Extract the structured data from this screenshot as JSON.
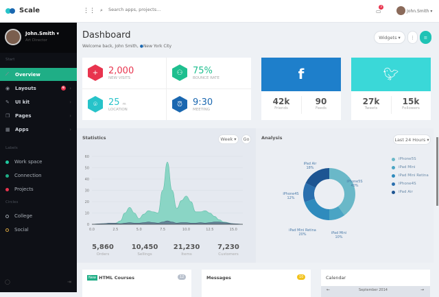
{
  "app": {
    "name": "Scale"
  },
  "topbar": {
    "search_placeholder": "Search apps, projects...",
    "notifications": "3",
    "user": "John.Smith"
  },
  "sidebar": {
    "user": {
      "name": "John.Smith",
      "role": "Art Director"
    },
    "section_start": "Start",
    "items": [
      {
        "label": "Overview",
        "icon": "chart-icon",
        "active": true
      },
      {
        "label": "Layouts",
        "icon": "layers-icon",
        "badge": "6"
      },
      {
        "label": "UI kit",
        "icon": "brush-icon"
      },
      {
        "label": "Pages",
        "icon": "pages-icon"
      },
      {
        "label": "Apps",
        "icon": "grid-icon"
      }
    ],
    "section_labels": "Labels",
    "labels": [
      {
        "label": "Work space",
        "color": "#1fc9a0"
      },
      {
        "label": "Connection",
        "color": "#1fae86"
      },
      {
        "label": "Projects",
        "color": "#e8344e"
      }
    ],
    "section_circles": "Circles",
    "circles": [
      {
        "label": "College",
        "color": "#9aa0a8"
      },
      {
        "label": "Social",
        "color": "#d9a640"
      }
    ]
  },
  "header": {
    "title": "Dashboard",
    "subtitle": "Welcome back, John Smith,",
    "location": "New York City",
    "widgets": "Widgets"
  },
  "stats": [
    {
      "value": "2,000",
      "label": "New visits",
      "color": "#e8344e",
      "icon": "plus-icon"
    },
    {
      "value": "75%",
      "label": "Bounce rate",
      "color": "#1fbf8f",
      "icon": "users-icon"
    },
    {
      "value": "25",
      "unit": "m",
      "label": "Location",
      "color": "#27c3c9",
      "icon": "location-icon"
    },
    {
      "value": "9:30",
      "label": "Meeting",
      "color": "#1a67b0",
      "icon": "alarm-icon"
    }
  ],
  "facebook": {
    "color": "#1e7fcb",
    "stats": [
      {
        "value": "42k",
        "label": "Friends"
      },
      {
        "value": "90",
        "label": "Feeds"
      }
    ]
  },
  "twitter": {
    "color": "#3ad8d8",
    "stats": [
      {
        "value": "27k",
        "label": "Tweets"
      },
      {
        "value": "15k",
        "label": "Followers"
      }
    ]
  },
  "statistics": {
    "title": "Statistics",
    "range": "Week",
    "go": "Go",
    "summary": [
      {
        "value": "5,860",
        "label": "Orders"
      },
      {
        "value": "10,450",
        "label": "Sellings"
      },
      {
        "value": "21,230",
        "label": "Items"
      },
      {
        "value": "7,230",
        "label": "Customers"
      }
    ]
  },
  "chart_data": [
    {
      "type": "area",
      "xlim": [
        0,
        16
      ],
      "ylim": [
        0,
        60
      ],
      "xticks": [
        "0.0",
        "2.5",
        "5.0",
        "7.5",
        "10.0",
        "12.5",
        "15.0"
      ],
      "yticks": [
        "0",
        "10",
        "20",
        "30",
        "40",
        "50",
        "60"
      ],
      "grid": true,
      "x": [
        0,
        1,
        2,
        2.5,
        3,
        3.5,
        4,
        4.5,
        5,
        5.5,
        6,
        6.5,
        7,
        7.5,
        8,
        8.5,
        9,
        9.5,
        10,
        10.5,
        11,
        11.5,
        12,
        12.5,
        13,
        13.5,
        14,
        15,
        16
      ],
      "series": [
        {
          "color": "#7fd3c0",
          "values": [
            0,
            0.5,
            1,
            1,
            3,
            10,
            15,
            10,
            5,
            9,
            12,
            11,
            10,
            30,
            55,
            30,
            14,
            21,
            25,
            20,
            11,
            11,
            12,
            10,
            7,
            4,
            2,
            0.5,
            0
          ]
        },
        {
          "color": "#5a6e8a",
          "values": [
            0,
            0.5,
            1,
            1,
            0.5,
            1,
            1.5,
            1,
            1,
            1.5,
            2,
            1.5,
            1,
            2,
            3,
            2,
            1,
            1.5,
            1.5,
            1,
            1,
            1.5,
            1,
            1.5,
            2,
            2,
            1.5,
            0.5,
            0
          ]
        }
      ]
    },
    {
      "type": "pie",
      "title": "Analysis",
      "range": "Last 24 Hours",
      "donut": true,
      "slices": [
        {
          "label": "iPhone5S",
          "value": 40,
          "color": "#6ab8c8"
        },
        {
          "label": "iPad Mini",
          "value": 10,
          "color": "#4aa4c4"
        },
        {
          "label": "iPad Mini Retina",
          "value": 20,
          "color": "#2f8bbd"
        },
        {
          "label": "iPhone4S",
          "value": 12,
          "color": "#2a6fae"
        },
        {
          "label": "iPad Air",
          "value": 18,
          "color": "#1d5592"
        }
      ]
    }
  ],
  "bottom": {
    "courses": {
      "badge": "New",
      "title": "HTML Courses",
      "count": "12"
    },
    "messages": {
      "title": "Messages",
      "count": "10"
    },
    "calendar": {
      "title": "Calendar",
      "month": "September 2014"
    }
  }
}
